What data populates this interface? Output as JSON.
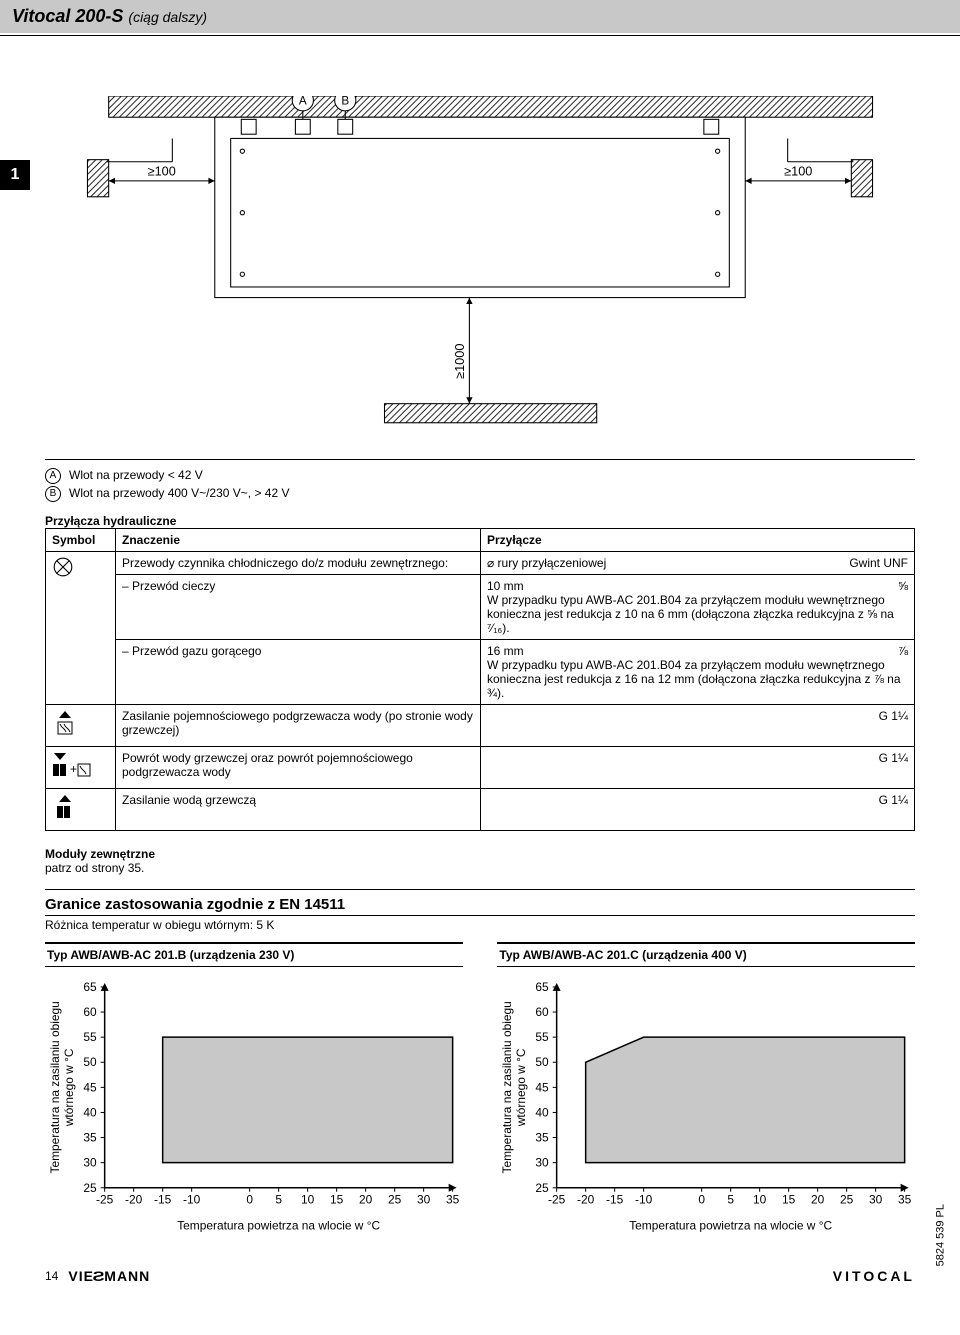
{
  "header": {
    "title": "Vitocal 200-S",
    "cont": "(ciąg dalszy)"
  },
  "section_tab": "1",
  "diagram": {
    "dim_left": "≥100",
    "dim_right": "≥100",
    "dim_below": "≥1000",
    "label_a": "A",
    "label_b": "B"
  },
  "legend": [
    {
      "sym": "A",
      "text": "Wlot na przewody < 42 V"
    },
    {
      "sym": "B",
      "text": "Wlot na przewody 400 V~/230 V~, > 42 V"
    }
  ],
  "table": {
    "caption": "Przyłącza hydrauliczne",
    "headers": [
      "Symbol",
      "Znaczenie",
      "Przyłącze"
    ],
    "conn_top_left": "⌀ rury przyłączeniowej",
    "conn_top_right": "Gwint UNF",
    "rows": [
      {
        "symbol_svg": "refrigerant",
        "meaning": "Przewody czynnika chłodniczego do/z modułu zewnętrznego:",
        "sub": [
          {
            "label": "– Przewód cieczy",
            "val_left": "10 mm",
            "val_right": "⅝",
            "note": "W przypadku typu AWB-AC 201.B04 za przyłączem modułu wewnętrznego konieczna jest redukcja z 10 na 6 mm (dołączona złączka redukcyjna z ⅝ na ⁷⁄₁₆)."
          },
          {
            "label": "– Przewód gazu gorącego",
            "val_left": "16 mm",
            "val_right": "⅞",
            "note": "W przypadku typu AWB-AC 201.B04 za przyłączem modułu wewnętrznego konieczna jest redukcja z 16 na 12 mm (dołączona złączka redukcyjna z ⅞ na ¾)."
          }
        ]
      },
      {
        "symbol_svg": "heater_down",
        "meaning": "Zasilanie pojemnościowego podgrzewacza wody (po stronie wody grzewczej)",
        "conn": "G 1¼"
      },
      {
        "symbol_svg": "heater_up_rad",
        "meaning": "Powrót wody grzewczej oraz powrót pojemnościowego podgrzewacza wody",
        "conn": "G 1¼"
      },
      {
        "symbol_svg": "rad_down",
        "meaning": "Zasilanie wodą grzewczą",
        "conn": "G 1¼"
      }
    ]
  },
  "modules": {
    "h": "Moduły zewnętrzne",
    "p": "patrz od strony 35."
  },
  "limits": {
    "h": "Granice zastosowania zgodnie z EN 14511",
    "p": "Różnica temperatur w obiegu wtórnym: 5 K"
  },
  "charts": {
    "ylabel": "Temperatura na zasilaniu obiegu wtórnego w °C",
    "xlabel": "Temperatura powietrza na wlocie w °C",
    "ylim": [
      25,
      65
    ],
    "yticks": [
      25,
      30,
      35,
      40,
      45,
      50,
      55,
      60,
      65
    ],
    "xlim": [
      -25,
      35
    ],
    "xticks": [
      -25,
      -20,
      -15,
      -10,
      0,
      5,
      10,
      15,
      20,
      25,
      30,
      35
    ],
    "left": {
      "title": "Typ AWB/AWB-AC 201.B (urządzenia 230 V)",
      "poly": [
        [
          -15,
          30
        ],
        [
          -15,
          55
        ],
        [
          35,
          55
        ],
        [
          35,
          30
        ]
      ]
    },
    "right": {
      "title": "Typ AWB/AWB-AC 201.C (urządzenia 400 V)",
      "poly": [
        [
          -20,
          30
        ],
        [
          -20,
          50
        ],
        [
          -10,
          55
        ],
        [
          35,
          55
        ],
        [
          35,
          30
        ]
      ]
    },
    "fill": "#c8c8c8",
    "stroke": "#000000",
    "axis_color": "#000000"
  },
  "footer": {
    "page_num": "14",
    "brand": "VIE§MANN",
    "right": "VITOCAL",
    "doc_id": "5824 539 PL"
  }
}
